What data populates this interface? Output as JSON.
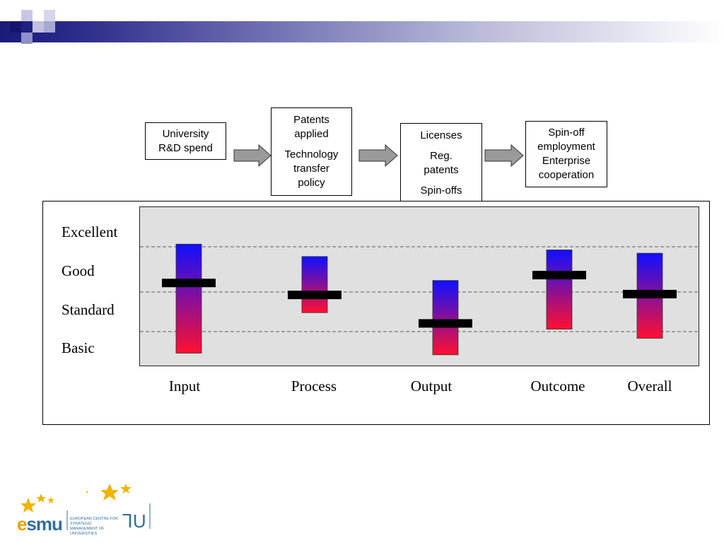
{
  "flow": {
    "box1": {
      "line1": "University",
      "line2": "R&D spend"
    },
    "box2": {
      "line1": "Patents",
      "line2": "applied",
      "line3": "Technology",
      "line4": "transfer",
      "line5": "policy"
    },
    "box3": {
      "line1": "Licenses",
      "line2": "Reg.",
      "line3": "patents",
      "line4": "Spin-offs"
    },
    "box4": {
      "line1": "Spin-off",
      "line2": "employment",
      "line3": "Enterprise",
      "line4": "cooperation"
    }
  },
  "chart_data": {
    "type": "bar",
    "levels": [
      "Excellent",
      "Good",
      "Standard",
      "Basic"
    ],
    "categories": [
      "Input",
      "Process",
      "Output",
      "Outcome",
      "Overall"
    ],
    "range_scale": {
      "min": 0,
      "max": 4,
      "note_levels": "0=bottom of Basic, 4=top of Excellent"
    },
    "ranges": [
      {
        "category": "Input",
        "low": 0.42,
        "high": 3.06,
        "mark": 2.12
      },
      {
        "category": "Process",
        "low": 1.4,
        "high": 2.76,
        "mark": 1.83
      },
      {
        "category": "Output",
        "low": 0.38,
        "high": 2.18,
        "mark": 1.14
      },
      {
        "category": "Outcome",
        "low": 1.0,
        "high": 2.92,
        "mark": 2.31
      },
      {
        "category": "Overall",
        "low": 0.78,
        "high": 2.84,
        "mark": 1.85
      }
    ],
    "dashed_lines": [
      1,
      2,
      3
    ],
    "colors": {
      "bar_top": "#1010ff",
      "bar_bottom": "#ff1030",
      "mark": "#000000",
      "background": "#e0e0e0"
    }
  },
  "logo": {
    "name": "esmu",
    "subtitle_line1": "EUROPEAN CENTRE FOR STRATEGIC",
    "subtitle_line2": "MANAGEMENT OF UNIVERSITIES"
  }
}
